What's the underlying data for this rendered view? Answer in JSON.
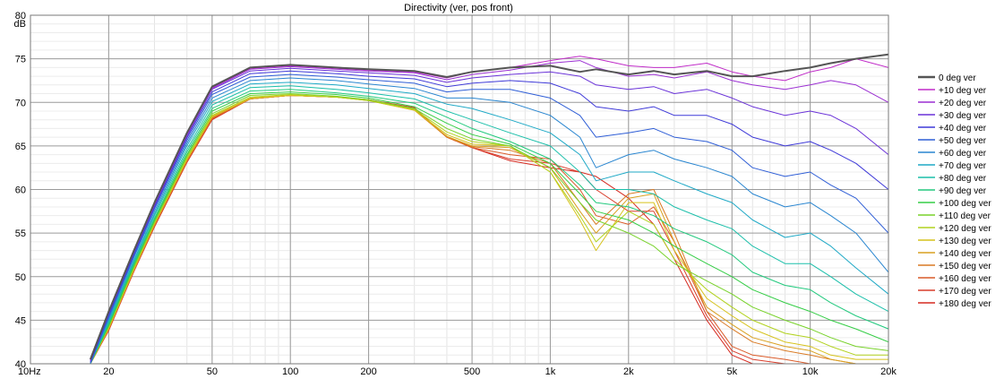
{
  "chart_data": {
    "type": "line",
    "title": "Directivity (ver, pos front)",
    "ylabel": "dB",
    "xscale": "log",
    "xlim": [
      10,
      20000
    ],
    "ylim": [
      40,
      80
    ],
    "x_ticks": [
      {
        "v": 10,
        "label": "10Hz"
      },
      {
        "v": 20,
        "label": "20"
      },
      {
        "v": 50,
        "label": "50"
      },
      {
        "v": 100,
        "label": "100"
      },
      {
        "v": 200,
        "label": "200"
      },
      {
        "v": 500,
        "label": "500"
      },
      {
        "v": 1000,
        "label": "1k"
      },
      {
        "v": 2000,
        "label": "2k"
      },
      {
        "v": 5000,
        "label": "5k"
      },
      {
        "v": 10000,
        "label": "10k"
      },
      {
        "v": 20000,
        "label": "20k"
      }
    ],
    "y_ticks": [
      {
        "v": 40,
        "label": "40"
      },
      {
        "v": 45,
        "label": "45"
      },
      {
        "v": 50,
        "label": "50"
      },
      {
        "v": 55,
        "label": "55"
      },
      {
        "v": 60,
        "label": "60"
      },
      {
        "v": 65,
        "label": "65"
      },
      {
        "v": 70,
        "label": "70"
      },
      {
        "v": 75,
        "label": "75"
      },
      {
        "v": 80,
        "label": "80"
      }
    ],
    "grid": true,
    "legend_position": "right",
    "x": [
      17,
      20,
      25,
      30,
      40,
      50,
      70,
      100,
      150,
      200,
      300,
      400,
      500,
      700,
      1000,
      1300,
      1500,
      2000,
      2500,
      3000,
      4000,
      5000,
      6000,
      8000,
      10000,
      12000,
      15000,
      20000
    ],
    "series": [
      {
        "name": "0 deg ver",
        "color": "#555555",
        "values": [
          40.5,
          46.0,
          53.0,
          58.5,
          66.5,
          71.8,
          74.0,
          74.3,
          74.0,
          73.8,
          73.6,
          72.9,
          73.5,
          74.0,
          74.2,
          73.5,
          73.8,
          73.2,
          73.6,
          73.2,
          73.6,
          73.0,
          73.0,
          73.6,
          74.0,
          74.5,
          75.0,
          75.5
        ]
      },
      {
        "name": "+10 deg ver",
        "color": "#c02cc8",
        "values": [
          40.5,
          46.0,
          53.0,
          58.4,
          66.4,
          71.7,
          73.9,
          74.2,
          73.9,
          73.7,
          73.5,
          72.8,
          73.5,
          74.0,
          74.8,
          75.3,
          75.0,
          74.2,
          74.0,
          74.0,
          74.5,
          73.5,
          73.0,
          72.5,
          73.5,
          74.0,
          75.0,
          74.0
        ]
      },
      {
        "name": "+20 deg ver",
        "color": "#9b2fd2",
        "values": [
          40.4,
          45.9,
          52.9,
          58.3,
          66.3,
          71.6,
          73.8,
          74.1,
          73.8,
          73.6,
          73.4,
          72.6,
          73.2,
          73.7,
          74.5,
          74.8,
          74.0,
          73.0,
          73.2,
          72.8,
          73.5,
          72.5,
          72.0,
          71.5,
          72.0,
          72.5,
          72.0,
          70.0
        ]
      },
      {
        "name": "+30 deg ver",
        "color": "#6a32d8",
        "values": [
          40.3,
          45.8,
          52.8,
          58.2,
          66.1,
          71.5,
          73.6,
          73.9,
          73.6,
          73.4,
          73.1,
          72.3,
          72.8,
          73.2,
          73.5,
          73.0,
          72.0,
          71.5,
          71.8,
          71.0,
          71.5,
          70.5,
          69.5,
          68.5,
          69.0,
          68.5,
          67.0,
          64.0
        ]
      },
      {
        "name": "+40 deg ver",
        "color": "#3f3ad8",
        "values": [
          40.2,
          45.6,
          52.6,
          58.0,
          65.9,
          71.2,
          73.3,
          73.6,
          73.3,
          73.0,
          72.7,
          71.8,
          72.2,
          72.5,
          72.2,
          71.0,
          69.5,
          69.0,
          69.5,
          68.5,
          68.5,
          67.5,
          66.0,
          65.0,
          65.5,
          64.5,
          63.0,
          60.0
        ]
      },
      {
        "name": "+50 deg ver",
        "color": "#2f5ed6",
        "values": [
          40.1,
          45.4,
          52.4,
          57.8,
          65.6,
          70.9,
          72.9,
          73.2,
          72.9,
          72.6,
          72.2,
          71.2,
          71.5,
          71.5,
          70.5,
          68.5,
          66.0,
          66.5,
          67.0,
          66.0,
          65.5,
          64.5,
          62.5,
          61.5,
          62.0,
          60.5,
          59.0,
          55.0
        ]
      },
      {
        "name": "+60 deg ver",
        "color": "#2a86d0",
        "values": [
          40.0,
          45.2,
          52.2,
          57.5,
          65.3,
          70.5,
          72.5,
          72.8,
          72.5,
          72.1,
          71.6,
          70.5,
          70.5,
          70.0,
          68.5,
          66.0,
          62.5,
          64.0,
          64.5,
          63.5,
          62.5,
          61.5,
          59.5,
          58.0,
          58.5,
          57.0,
          55.0,
          50.5
        ]
      },
      {
        "name": "+70 deg ver",
        "color": "#1fa9c6",
        "values": [
          40.0,
          45.0,
          51.9,
          57.2,
          65.0,
          70.1,
          72.1,
          72.3,
          72.0,
          71.6,
          71.0,
          69.8,
          69.3,
          68.0,
          66.5,
          64.0,
          61.0,
          62.0,
          62.0,
          61.0,
          59.5,
          58.5,
          56.5,
          54.5,
          55.0,
          53.5,
          51.0,
          48.0
        ]
      },
      {
        "name": "+80 deg ver",
        "color": "#1cbfaa",
        "values": [
          40.0,
          44.8,
          51.7,
          57.0,
          64.6,
          69.7,
          71.7,
          71.9,
          71.5,
          71.1,
          70.4,
          69.0,
          68.0,
          66.5,
          65.0,
          62.0,
          60.0,
          60.0,
          59.5,
          58.0,
          56.5,
          55.5,
          53.5,
          51.5,
          51.5,
          50.0,
          48.0,
          46.0
        ]
      },
      {
        "name": "+90 deg ver",
        "color": "#23c97e",
        "values": [
          40.0,
          44.6,
          51.5,
          56.7,
          64.3,
          69.3,
          71.3,
          71.5,
          71.1,
          70.7,
          69.9,
          68.3,
          67.0,
          65.5,
          63.5,
          60.5,
          58.5,
          58.0,
          57.0,
          55.5,
          54.0,
          52.5,
          50.5,
          49.0,
          48.5,
          47.0,
          45.5,
          44.0
        ]
      },
      {
        "name": "+100 deg ver",
        "color": "#35cd46",
        "values": [
          40.0,
          44.4,
          51.3,
          56.5,
          64.0,
          69.0,
          71.0,
          71.2,
          70.9,
          70.5,
          69.5,
          67.6,
          66.3,
          65.2,
          63.0,
          59.5,
          57.5,
          56.5,
          55.0,
          53.5,
          51.5,
          50.0,
          48.5,
          47.0,
          46.0,
          45.0,
          44.0,
          42.5
        ]
      },
      {
        "name": "+110 deg ver",
        "color": "#78d22a",
        "values": [
          40.0,
          44.3,
          51.1,
          56.3,
          63.8,
          68.7,
          70.8,
          71.0,
          70.7,
          70.3,
          69.3,
          67.0,
          65.8,
          65.0,
          62.5,
          58.5,
          56.5,
          55.0,
          53.5,
          51.5,
          49.5,
          48.0,
          46.5,
          45.0,
          44.0,
          43.0,
          42.0,
          41.5
        ]
      },
      {
        "name": "+120 deg ver",
        "color": "#b2d21f",
        "values": [
          40.0,
          44.2,
          51.0,
          56.2,
          63.6,
          68.5,
          70.6,
          70.9,
          70.6,
          70.2,
          69.2,
          66.6,
          65.5,
          65.0,
          62.0,
          57.0,
          54.0,
          57.5,
          56.0,
          52.0,
          48.5,
          46.5,
          45.0,
          43.5,
          43.0,
          42.0,
          41.0,
          41.0
        ]
      },
      {
        "name": "+130 deg ver",
        "color": "#d6c21b",
        "values": [
          40.0,
          44.1,
          50.9,
          56.1,
          63.5,
          68.4,
          70.5,
          70.8,
          70.6,
          70.2,
          69.1,
          66.3,
          65.2,
          65.0,
          62.0,
          56.5,
          53.0,
          58.5,
          58.5,
          53.0,
          47.5,
          45.5,
          44.0,
          42.5,
          42.0,
          41.0,
          40.5,
          40.5
        ]
      },
      {
        "name": "+140 deg ver",
        "color": "#d9a020",
        "values": [
          40.0,
          44.0,
          50.8,
          56.0,
          63.4,
          68.3,
          70.4,
          70.8,
          70.6,
          70.2,
          69.1,
          66.1,
          65.0,
          64.8,
          62.5,
          57.5,
          55.0,
          59.0,
          59.5,
          54.0,
          46.5,
          44.5,
          43.0,
          42.0,
          41.5,
          40.5,
          40.0,
          40.0
        ]
      },
      {
        "name": "+150 deg ver",
        "color": "#d97a24",
        "values": [
          40.0,
          44.0,
          50.7,
          55.9,
          63.3,
          68.2,
          70.4,
          70.8,
          70.6,
          70.3,
          69.1,
          66.0,
          64.9,
          64.5,
          63.0,
          58.5,
          56.0,
          59.5,
          60.0,
          55.0,
          46.0,
          44.0,
          42.5,
          41.5,
          41.0,
          40.5,
          40.0,
          40.0
        ]
      },
      {
        "name": "+160 deg ver",
        "color": "#d95a28",
        "values": [
          40.0,
          43.9,
          50.7,
          55.8,
          63.2,
          68.1,
          70.4,
          70.8,
          70.6,
          70.3,
          69.2,
          66.0,
          64.8,
          64.0,
          63.5,
          60.0,
          57.0,
          56.0,
          58.0,
          54.0,
          46.0,
          42.0,
          41.0,
          40.5,
          40.0,
          40.0,
          40.0,
          40.0
        ]
      },
      {
        "name": "+170 deg ver",
        "color": "#d93e2c",
        "values": [
          40.0,
          43.9,
          50.6,
          55.8,
          63.2,
          68.1,
          70.4,
          70.8,
          70.6,
          70.3,
          69.3,
          66.0,
          64.8,
          63.5,
          63.0,
          62.0,
          60.0,
          57.5,
          57.5,
          53.0,
          45.5,
          41.5,
          40.5,
          40.0,
          40.0,
          40.0,
          40.0,
          40.0
        ]
      },
      {
        "name": "+180 deg ver",
        "color": "#d62a20",
        "values": [
          40.0,
          43.8,
          50.6,
          55.7,
          63.1,
          68.0,
          70.4,
          70.8,
          70.6,
          70.3,
          69.4,
          66.0,
          64.8,
          63.3,
          62.5,
          62.0,
          61.5,
          59.0,
          56.0,
          52.0,
          45.0,
          41.0,
          40.0,
          40.0,
          40.0,
          40.0,
          40.0,
          40.0
        ]
      }
    ]
  }
}
